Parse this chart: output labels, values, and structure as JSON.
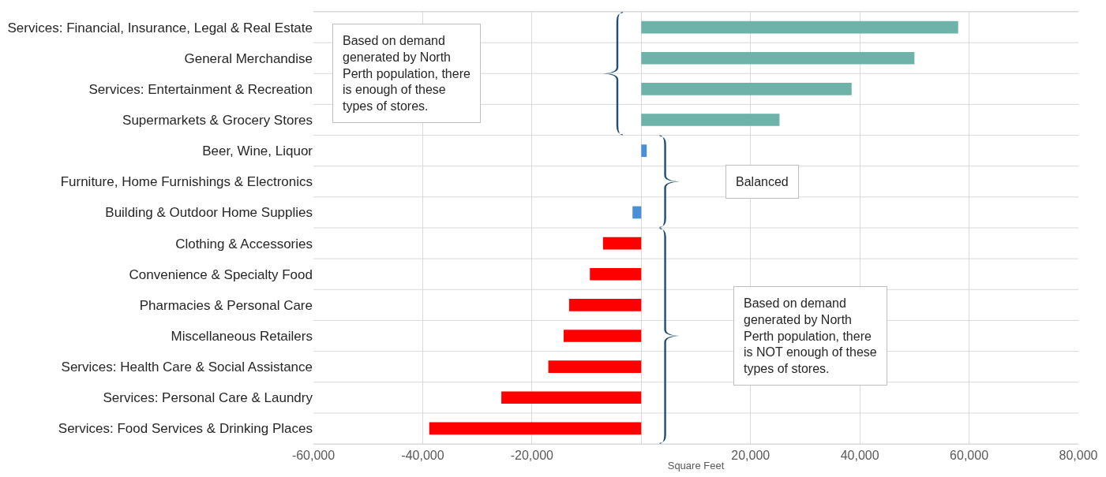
{
  "chart_data": {
    "type": "bar",
    "orientation": "horizontal",
    "xlabel": "Square Feet",
    "categories": [
      "Services: Financial, Insurance, Legal & Real Estate",
      "General Merchandise",
      "Services: Entertainment & Recreation",
      "Supermarkets & Grocery Stores",
      "Beer, Wine, Liquor",
      "Furniture, Home Furnishings & Electronics",
      "Building & Outdoor Home Supplies",
      "Clothing & Accessories",
      "Convenience & Specialty Food",
      "Pharmacies & Personal Care",
      "Miscellaneous Retailers",
      "Services: Health Care & Social Assistance",
      "Services: Personal Care & Laundry",
      "Services: Food Services & Drinking Places"
    ],
    "values": [
      58000,
      50000,
      38500,
      25300,
      1000,
      0,
      -1600,
      -7000,
      -9400,
      -13200,
      -14200,
      -17000,
      -25600,
      -38800
    ],
    "colors": [
      "#6db3a9",
      "#6db3a9",
      "#6db3a9",
      "#6db3a9",
      "#4a90d9",
      "#4a90d9",
      "#4a90d9",
      "#ff0000",
      "#ff0000",
      "#ff0000",
      "#ff0000",
      "#ff0000",
      "#ff0000",
      "#ff0000"
    ],
    "xlim": [
      -60000,
      80000
    ],
    "xticks": [
      {
        "value": -60000,
        "label": "-60,000"
      },
      {
        "value": -40000,
        "label": "-40,000"
      },
      {
        "value": -20000,
        "label": "-20,000"
      },
      {
        "value": 0,
        "label": null
      },
      {
        "value": 20000,
        "label": "20,000"
      },
      {
        "value": 40000,
        "label": "40,000"
      },
      {
        "value": 60000,
        "label": "60,000"
      },
      {
        "value": 80000,
        "label": "80,000"
      }
    ],
    "grid": true,
    "annotations": [
      "Based on demand\ngenerated by North\nPerth population, there\nis enough of these\ntypes of stores.",
      "Balanced",
      "Based on demand\ngenerated by North\nPerth population, there\nis NOT enough of these\ntypes of stores."
    ]
  }
}
